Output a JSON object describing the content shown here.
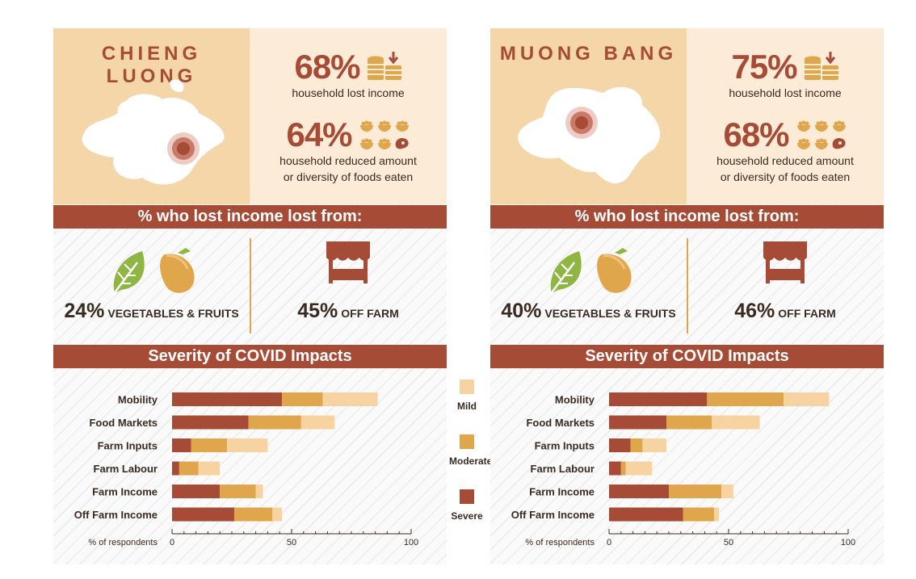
{
  "colors": {
    "severe": "#a54b36",
    "moderate": "#e0a64c",
    "mild": "#f7d3a2"
  },
  "panels": [
    {
      "region": "CHIENG LUONG",
      "stat1": {
        "value": "68%",
        "caption": "household lost income"
      },
      "stat2": {
        "value": "64%",
        "caption1": "household reduced amount",
        "caption2": "or diversity of foods eaten"
      },
      "sources_title": "% who lost income lost from:",
      "sources": [
        {
          "value": "24%",
          "label": "VEGETABLES & FRUITS"
        },
        {
          "value": "45%",
          "label": "OFF FARM"
        }
      ],
      "severity_title": "Severity of COVID Impacts"
    },
    {
      "region": "MUONG BANG",
      "stat1": {
        "value": "75%",
        "caption": "household lost income"
      },
      "stat2": {
        "value": "68%",
        "caption1": "household reduced amount",
        "caption2": "or diversity of foods eaten"
      },
      "sources_title": "% who lost income lost from:",
      "sources": [
        {
          "value": "40%",
          "label": "VEGETABLES & FRUITS"
        },
        {
          "value": "46%",
          "label": "OFF FARM"
        }
      ],
      "severity_title": "Severity of COVID Impacts"
    }
  ],
  "legend": [
    "Mild",
    "Moderate",
    "Severe"
  ],
  "chart_data": [
    {
      "type": "bar",
      "orientation": "horizontal",
      "stacked": true,
      "title": "Severity of COVID Impacts",
      "xlabel": "% of respondents",
      "xlim": [
        0,
        100
      ],
      "xticks": [
        0,
        50,
        100
      ],
      "categories": [
        "Mobility",
        "Food Markets",
        "Farm Inputs",
        "Farm Labour",
        "Farm Income",
        "Off Farm Income"
      ],
      "series": [
        {
          "name": "Severe",
          "values": [
            46,
            32,
            8,
            3,
            20,
            26
          ]
        },
        {
          "name": "Moderate",
          "values": [
            17,
            22,
            15,
            8,
            15,
            16
          ]
        },
        {
          "name": "Mild",
          "values": [
            23,
            14,
            17,
            9,
            3,
            4
          ]
        }
      ]
    },
    {
      "type": "bar",
      "orientation": "horizontal",
      "stacked": true,
      "title": "Severity of COVID Impacts",
      "xlabel": "% of respondents",
      "xlim": [
        0,
        100
      ],
      "xticks": [
        0,
        50,
        100
      ],
      "categories": [
        "Mobility",
        "Food Markets",
        "Farm Inputs",
        "Farm Labour",
        "Farm Income",
        "Off Farm Income"
      ],
      "series": [
        {
          "name": "Severe",
          "values": [
            41,
            24,
            9,
            5,
            25,
            31
          ]
        },
        {
          "name": "Moderate",
          "values": [
            32,
            19,
            5,
            2,
            22,
            13
          ]
        },
        {
          "name": "Mild",
          "values": [
            19,
            20,
            10,
            11,
            5,
            2
          ]
        }
      ]
    }
  ]
}
